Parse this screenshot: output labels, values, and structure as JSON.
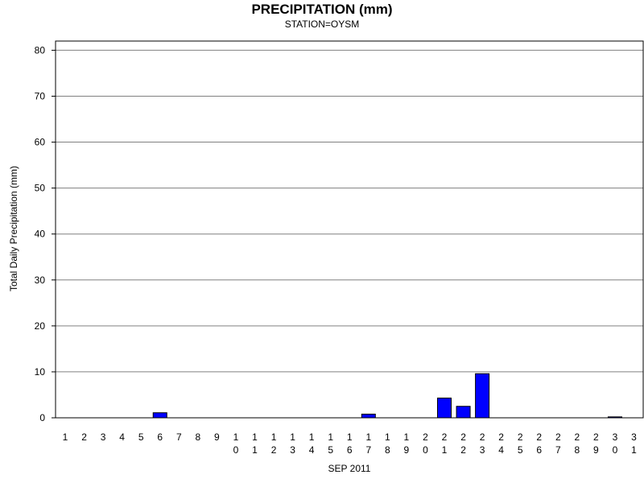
{
  "chart_data": {
    "type": "bar",
    "title": "PRECIPITATION (mm)",
    "subtitle": "STATION=OYSM",
    "xlabel": "SEP 2011",
    "ylabel": "Total Daily Precipitation (mm)",
    "ylim": [
      0,
      82
    ],
    "yticks": [
      0,
      10,
      20,
      30,
      40,
      50,
      60,
      70,
      80
    ],
    "grid": true,
    "bar_color": "#0000ff",
    "categories": [
      "1",
      "2",
      "3",
      "4",
      "5",
      "6",
      "7",
      "8",
      "9",
      "10",
      "11",
      "12",
      "13",
      "14",
      "15",
      "16",
      "17",
      "18",
      "19",
      "20",
      "21",
      "22",
      "23",
      "24",
      "25",
      "26",
      "27",
      "28",
      "29",
      "30",
      "31"
    ],
    "values": [
      0,
      0,
      0,
      0,
      0,
      1.1,
      0,
      0,
      0,
      0,
      0,
      0,
      0,
      0,
      0,
      0,
      0.8,
      0,
      0,
      0,
      4.3,
      2.5,
      9.6,
      0,
      0,
      0,
      0,
      0,
      0,
      0.2,
      0
    ]
  }
}
